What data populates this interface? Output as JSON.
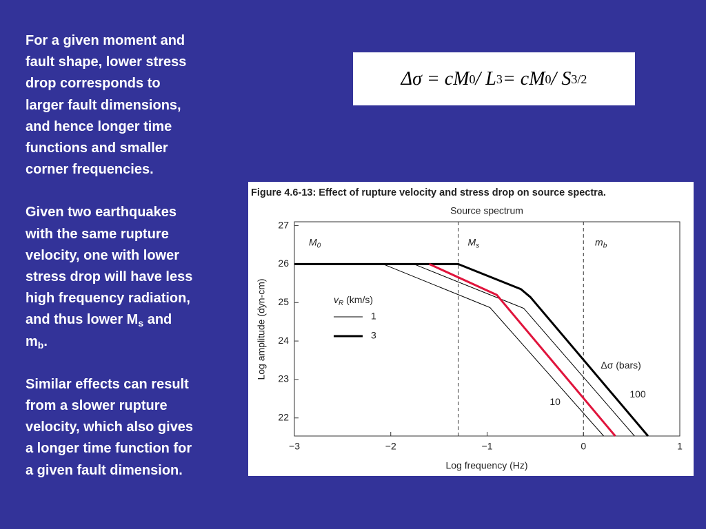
{
  "paragraphs": [
    [
      "For a given moment and",
      "fault shape, lower stress",
      "drop corresponds to",
      "larger fault dimensions,",
      "and hence longer time",
      "functions and smaller",
      "corner frequencies."
    ],
    [
      "Given two earthquakes",
      "with the same rupture",
      "velocity, one with lower",
      "stress drop will have less",
      "high frequency radiation,",
      [
        {
          "text": "and thus lower M",
          "style": "normal"
        },
        {
          "text": "s",
          "style": "sub"
        },
        {
          "text": " and",
          "style": "normal"
        }
      ],
      [
        {
          "text": "m",
          "style": "normal"
        },
        {
          "text": "b",
          "style": "sub"
        },
        {
          "text": ".",
          "style": "normal"
        }
      ]
    ],
    [
      "Similar effects can result",
      "from a slower rupture",
      "velocity, which also gives",
      "a longer time function for",
      "a given fault dimension."
    ]
  ],
  "equation": [
    {
      "text": "Δσ = cM",
      "style": "normal"
    },
    {
      "text": "0",
      "style": "sub"
    },
    {
      "text": " / L",
      "style": "normal"
    },
    {
      "text": "3",
      "style": "sup"
    },
    {
      "text": " = cM",
      "style": "normal"
    },
    {
      "text": "0",
      "style": "sub"
    },
    {
      "text": " / S",
      "style": "normal"
    },
    {
      "text": "3/2",
      "style": "sup"
    }
  ],
  "chart_data": {
    "type": "line",
    "title": "Figure 4.6-13: Effect of rupture velocity and stress drop on source spectra.",
    "subtitle": "Source spectrum",
    "x_label": "Log frequency (Hz)",
    "y_label": "Log amplitude (dyn-cm)",
    "xlim": [
      -3,
      1
    ],
    "ylim": [
      21.53,
      27.1
    ],
    "xticks": [
      {
        "value": -3,
        "label": "−3"
      },
      {
        "value": -2,
        "label": "−2"
      },
      {
        "value": -1,
        "label": "−1"
      },
      0,
      1
    ],
    "yticks": [
      22,
      23,
      24,
      25,
      26,
      27
    ],
    "dividers": [
      -1.3,
      0
    ],
    "regions": [
      {
        "text": "M",
        "sub": "0",
        "x": -2.85,
        "y": 26.55
      },
      {
        "text": "M",
        "sub": "s",
        "x": -1.2,
        "y": 26.55
      },
      {
        "text": "m",
        "sub": "b",
        "x": 0.12,
        "y": 26.55
      }
    ],
    "series": [
      {
        "color": "#000000",
        "width": 1,
        "x": [
          -2.08,
          -0.97,
          0.21
        ],
        "values": [
          26,
          24.87,
          21.53
        ]
      },
      {
        "color": "#000000",
        "width": 1,
        "x": [
          -1.76,
          -0.62,
          0.53
        ],
        "values": [
          26,
          24.85,
          21.53
        ]
      },
      {
        "color": "#000000",
        "width": 3,
        "x": [
          -3,
          -1.3,
          -0.65,
          -0.55,
          0.67
        ],
        "values": [
          26,
          26,
          25.35,
          25.14,
          21.53
        ]
      },
      {
        "color": "#e0143c",
        "width": 3,
        "x": [
          -1.6,
          -0.9,
          0.33
        ],
        "values": [
          26,
          25.2,
          21.53
        ]
      }
    ],
    "legend": {
      "title": "v",
      "title_sub": "R",
      "title_rest": " (km/s)",
      "entries": [
        {
          "label": "1",
          "width": 1
        },
        {
          "label": "3",
          "width": 3
        }
      ]
    },
    "annotations": [
      {
        "text": "Δσ (bars)",
        "x": 0.18,
        "y": 23.35
      },
      {
        "text": "100",
        "x": 0.48,
        "y": 22.6
      },
      {
        "text": "10",
        "x": -0.35,
        "y": 22.4
      }
    ]
  }
}
